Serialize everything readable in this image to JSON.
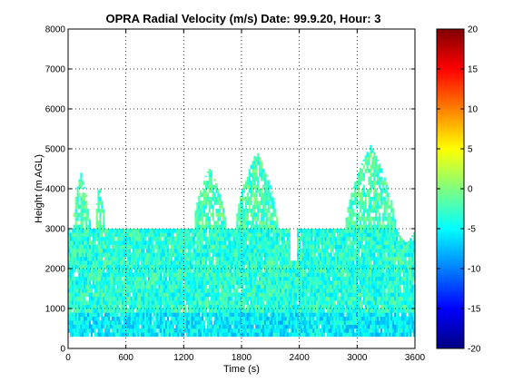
{
  "chart_data": {
    "type": "heatmap",
    "title": "OPRA Radial Velocity (m/s)  Date: 99.9.20, Hour: 3",
    "xlabel": "Time (s)",
    "ylabel": "Height (m AGL)",
    "xlim": [
      0,
      3600
    ],
    "ylim": [
      0,
      8000
    ],
    "xticks": [
      "0",
      "600",
      "1200",
      "1800",
      "2400",
      "3000",
      "3600"
    ],
    "yticks": [
      "0",
      "1000",
      "2000",
      "3000",
      "4000",
      "5000",
      "6000",
      "7000",
      "8000"
    ],
    "grid": true,
    "colorbar": {
      "range": [
        -20,
        20
      ],
      "ticks": [
        "20",
        "15",
        "10",
        "5",
        "0",
        "-5",
        "-10",
        "-15",
        "-20"
      ],
      "colormap": "jet"
    },
    "data_extent": {
      "height_min": 300,
      "main_layer_top": 3000,
      "secondary_layer_top": 2550,
      "typical_velocity": -3.5,
      "velocity_spread": [
        -9,
        0
      ]
    },
    "plumes": [
      {
        "x_start": 40,
        "x_end": 230,
        "top": 4400
      },
      {
        "x_start": 280,
        "x_end": 380,
        "top": 4200
      },
      {
        "x_start": 1300,
        "x_end": 1640,
        "top": 4550
      },
      {
        "x_start": 1740,
        "x_end": 2180,
        "top": 4950
      },
      {
        "x_start": 2880,
        "x_end": 3400,
        "top": 5100
      },
      {
        "x_start": 3420,
        "x_end": 3600,
        "top": 2650
      }
    ]
  }
}
